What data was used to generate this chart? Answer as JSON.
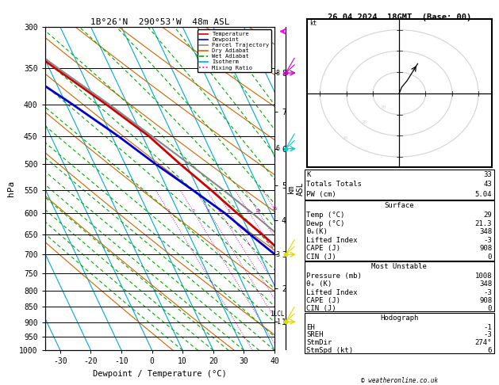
{
  "title_left": "1B°26'N  290°53'W  48m ASL",
  "title_right": "26.04.2024  18GMT  (Base: 00)",
  "xlabel": "Dewpoint / Temperature (°C)",
  "ylabel_left": "hPa",
  "pressure_levels": [
    300,
    350,
    400,
    450,
    500,
    550,
    600,
    650,
    700,
    750,
    800,
    850,
    900,
    950,
    1000
  ],
  "temp_color": "#cc0000",
  "dewp_color": "#0000cc",
  "parcel_color": "#888888",
  "dry_adiabat_color": "#cc6600",
  "wet_adiabat_color": "#00aa00",
  "isotherm_color": "#00aacc",
  "mixing_ratio_color": "#cc00cc",
  "background_color": "#ffffff",
  "legend_labels": [
    "Temperature",
    "Dewpoint",
    "Parcel Trajectory",
    "Dry Adiabat",
    "Wet Adiabat",
    "Isotherm",
    "Mixing Ratio"
  ],
  "legend_colors": [
    "#cc0000",
    "#0000cc",
    "#888888",
    "#cc6600",
    "#00aa00",
    "#00aacc",
    "#cc00cc"
  ],
  "stats_keys": [
    "K",
    "Totals Totals",
    "PW (cm)"
  ],
  "stats_vals": [
    "33",
    "43",
    "5.04"
  ],
  "surface_keys": [
    "Temp (°C)",
    "Dewp (°C)",
    "θₑ(K)",
    "Lifted Index",
    "CAPE (J)",
    "CIN (J)"
  ],
  "surface_vals": [
    "29",
    "21.3",
    "348",
    "-3",
    "908",
    "0"
  ],
  "mu_keys": [
    "Pressure (mb)",
    "θₑ (K)",
    "Lifted Index",
    "CAPE (J)",
    "CIN (J)"
  ],
  "mu_vals": [
    "1008",
    "348",
    "-3",
    "908",
    "0"
  ],
  "hodo_keys": [
    "EH",
    "SREH",
    "StmDir",
    "StmSpd (kt)"
  ],
  "hodo_vals": [
    "-1",
    "-3",
    "274°",
    "6"
  ],
  "temp_pressures": [
    1000,
    950,
    900,
    850,
    800,
    750,
    700,
    650,
    600,
    550,
    500,
    450,
    400,
    350,
    300
  ],
  "temp_temps": [
    29,
    26,
    23,
    20,
    16,
    12,
    8,
    4,
    -1,
    -6,
    -12,
    -18,
    -27,
    -38,
    -50
  ],
  "dewp_temps": [
    21.3,
    20,
    18,
    16,
    13,
    9,
    5,
    0,
    -5,
    -12,
    -20,
    -28,
    -38,
    -50,
    -62
  ],
  "parcel_temps": [
    29,
    27.5,
    25.5,
    23,
    20,
    17,
    13.5,
    9,
    4,
    -2,
    -9,
    -17,
    -26,
    -37,
    -49
  ],
  "mixing_ratios": [
    1,
    2,
    3,
    4,
    5,
    8,
    10,
    15,
    20,
    25
  ],
  "x_min": -35,
  "x_max": 40,
  "p_min": 300,
  "p_max": 1000,
  "copyright": "© weatheronline.co.uk"
}
